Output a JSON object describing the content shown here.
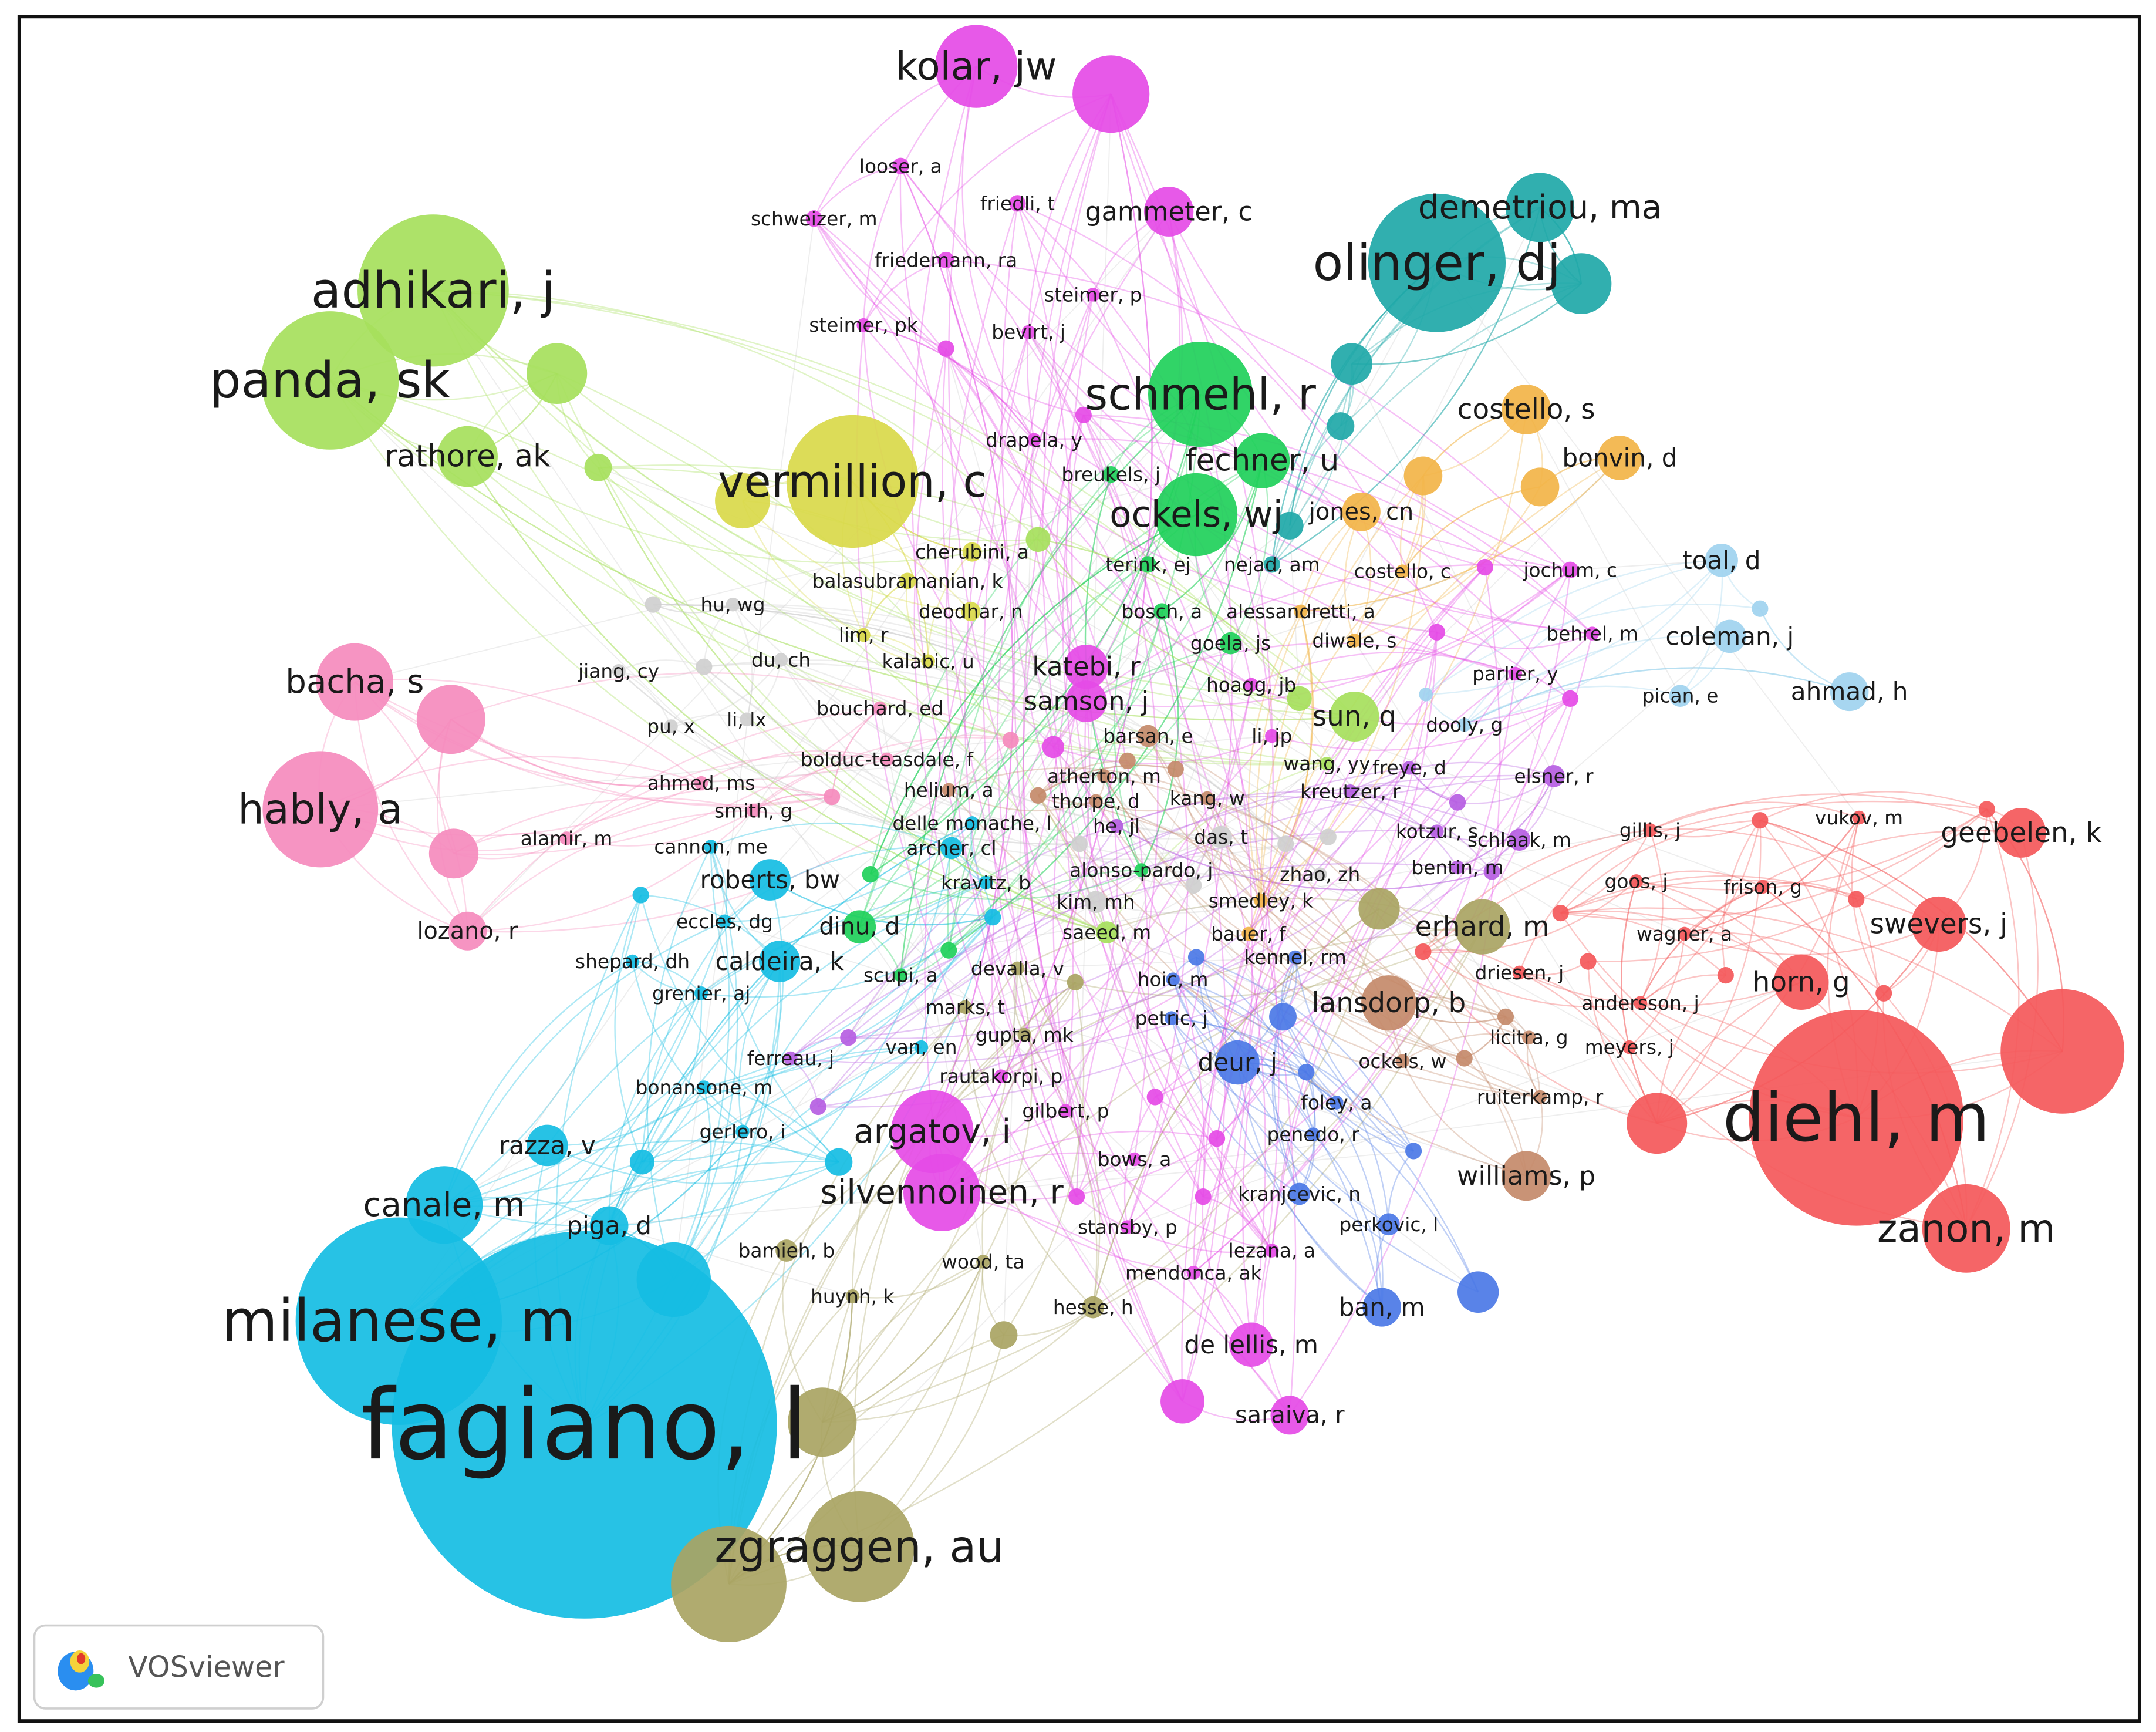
{
  "nodes": [
    {
      "label": "fagiano, l"
    },
    {
      "label": "milanese, m"
    },
    {
      "label": "zgraggen, au"
    },
    {
      "label": "diehl, m"
    },
    {
      "label": "zanon, m"
    },
    {
      "label": "olinger, dj"
    },
    {
      "label": "demetriou, ma"
    },
    {
      "label": "adhikari, j"
    },
    {
      "label": "panda, sk"
    },
    {
      "label": "rathore, ak"
    },
    {
      "label": "kolar, jw"
    },
    {
      "label": "schmehl, r"
    },
    {
      "label": "vermillion, c"
    },
    {
      "label": "ockels, wj"
    },
    {
      "label": "fechner, u"
    },
    {
      "label": "hably, a"
    },
    {
      "label": "bacha, s"
    },
    {
      "label": "canale, m"
    },
    {
      "label": "argatov, i"
    },
    {
      "label": "silvennoinen, r"
    },
    {
      "label": "costello, s"
    },
    {
      "label": "bonvin, d"
    },
    {
      "label": "swevers, j"
    },
    {
      "label": "geebelen, k"
    },
    {
      "label": "horn, g"
    },
    {
      "label": "erhard, m"
    },
    {
      "label": "lansdorp, b"
    },
    {
      "label": "williams, p"
    },
    {
      "label": "toal, d"
    },
    {
      "label": "coleman, j"
    },
    {
      "label": "ahmad, h"
    },
    {
      "label": "sun, q"
    },
    {
      "label": "katebi, r"
    },
    {
      "label": "samson, j"
    },
    {
      "label": "roberts, bw"
    },
    {
      "label": "caldeira, k"
    },
    {
      "label": "razza, v"
    },
    {
      "label": "piga, d"
    },
    {
      "label": "deur, j"
    },
    {
      "label": "ban, m"
    },
    {
      "label": "de lellis, m"
    },
    {
      "label": "saraiva, r"
    },
    {
      "label": "lozano, r"
    },
    {
      "label": "dinu, d"
    },
    {
      "label": "jones, cn"
    },
    {
      "label": "gammeter, c"
    },
    {
      "label": "looser, a"
    },
    {
      "label": "schweizer, m"
    },
    {
      "label": "friedli, t"
    },
    {
      "label": "friedemann, ra"
    },
    {
      "label": "steimer, p"
    },
    {
      "label": "steimer, pk"
    },
    {
      "label": "bevirt, j"
    },
    {
      "label": "drapela, y"
    },
    {
      "label": "breukels, j"
    },
    {
      "label": "cherubini, a"
    },
    {
      "label": "balasubramanian, k"
    },
    {
      "label": "deodhar, n"
    },
    {
      "label": "terink, ej"
    },
    {
      "label": "nejad, am"
    },
    {
      "label": "costello, c"
    },
    {
      "label": "jochum, c"
    },
    {
      "label": "hu, wg"
    },
    {
      "label": "bosch, a"
    },
    {
      "label": "alessandretti, a"
    },
    {
      "label": "lim, r"
    },
    {
      "label": "du, ch"
    },
    {
      "label": "jiang, cy"
    },
    {
      "label": "kalabic, u"
    },
    {
      "label": "goela, js"
    },
    {
      "label": "diwale, s"
    },
    {
      "label": "behrel, m"
    },
    {
      "label": "parlier, y"
    },
    {
      "label": "hoagg, jb"
    },
    {
      "label": "bouchard, ed"
    },
    {
      "label": "pu, x"
    },
    {
      "label": "li, lx"
    },
    {
      "label": "li, jp"
    },
    {
      "label": "dooly, g"
    },
    {
      "label": "pican, e"
    },
    {
      "label": "barsan, e"
    },
    {
      "label": "wang, yy"
    },
    {
      "label": "freye, d"
    },
    {
      "label": "elsner, r"
    },
    {
      "label": "bolduc-teasdale, f"
    },
    {
      "label": "ahmed, ms"
    },
    {
      "label": "helium, a"
    },
    {
      "label": "atherton, m"
    },
    {
      "label": "thorpe, d"
    },
    {
      "label": "kang, w"
    },
    {
      "label": "kreutzer, r"
    },
    {
      "label": "smith, g"
    },
    {
      "label": "delle monache, l"
    },
    {
      "label": "he, jl"
    },
    {
      "label": "das, t"
    },
    {
      "label": "kotzur, s"
    },
    {
      "label": "schlaak, m"
    },
    {
      "label": "gillis, j"
    },
    {
      "label": "vukov, m"
    },
    {
      "label": "alamir, m"
    },
    {
      "label": "cannon, me"
    },
    {
      "label": "archer, cl"
    },
    {
      "label": "frison, g"
    },
    {
      "label": "kravitz, b"
    },
    {
      "label": "alonso-pardo, j"
    },
    {
      "label": "zhao, zh"
    },
    {
      "label": "bentin, m"
    },
    {
      "label": "goos, j"
    },
    {
      "label": "eccles, dg"
    },
    {
      "label": "kim, mh"
    },
    {
      "label": "smedley, k"
    },
    {
      "label": "wagner, a"
    },
    {
      "label": "saeed, m"
    },
    {
      "label": "bauer, f"
    },
    {
      "label": "shepard, dh"
    },
    {
      "label": "scupi, a"
    },
    {
      "label": "devalla, v"
    },
    {
      "label": "kennel, rm"
    },
    {
      "label": "driesen, j"
    },
    {
      "label": "grenier, aj"
    },
    {
      "label": "marks, t"
    },
    {
      "label": "hoic, m"
    },
    {
      "label": "andersson, j"
    },
    {
      "label": "petric, j"
    },
    {
      "label": "gupta, mk"
    },
    {
      "label": "licitra, g"
    },
    {
      "label": "meyers, j"
    },
    {
      "label": "van, en"
    },
    {
      "label": "ferreau, j"
    },
    {
      "label": "ockels, w"
    },
    {
      "label": "rautakorpi, p"
    },
    {
      "label": "bonansone, m"
    },
    {
      "label": "ruiterkamp, r"
    },
    {
      "label": "foley, a"
    },
    {
      "label": "gilbert, p"
    },
    {
      "label": "gerlero, i"
    },
    {
      "label": "penedo, r"
    },
    {
      "label": "bows, a"
    },
    {
      "label": "kranjcevic, n"
    },
    {
      "label": "stansby, p"
    },
    {
      "label": "perkovic, l"
    },
    {
      "label": "bamieh, b"
    },
    {
      "label": "lezana, a"
    },
    {
      "label": "wood, ta"
    },
    {
      "label": "mendonca, ak"
    },
    {
      "label": "huynh, k"
    },
    {
      "label": "hesse, h"
    }
  ],
  "logo": {
    "text": "VOSviewer"
  }
}
